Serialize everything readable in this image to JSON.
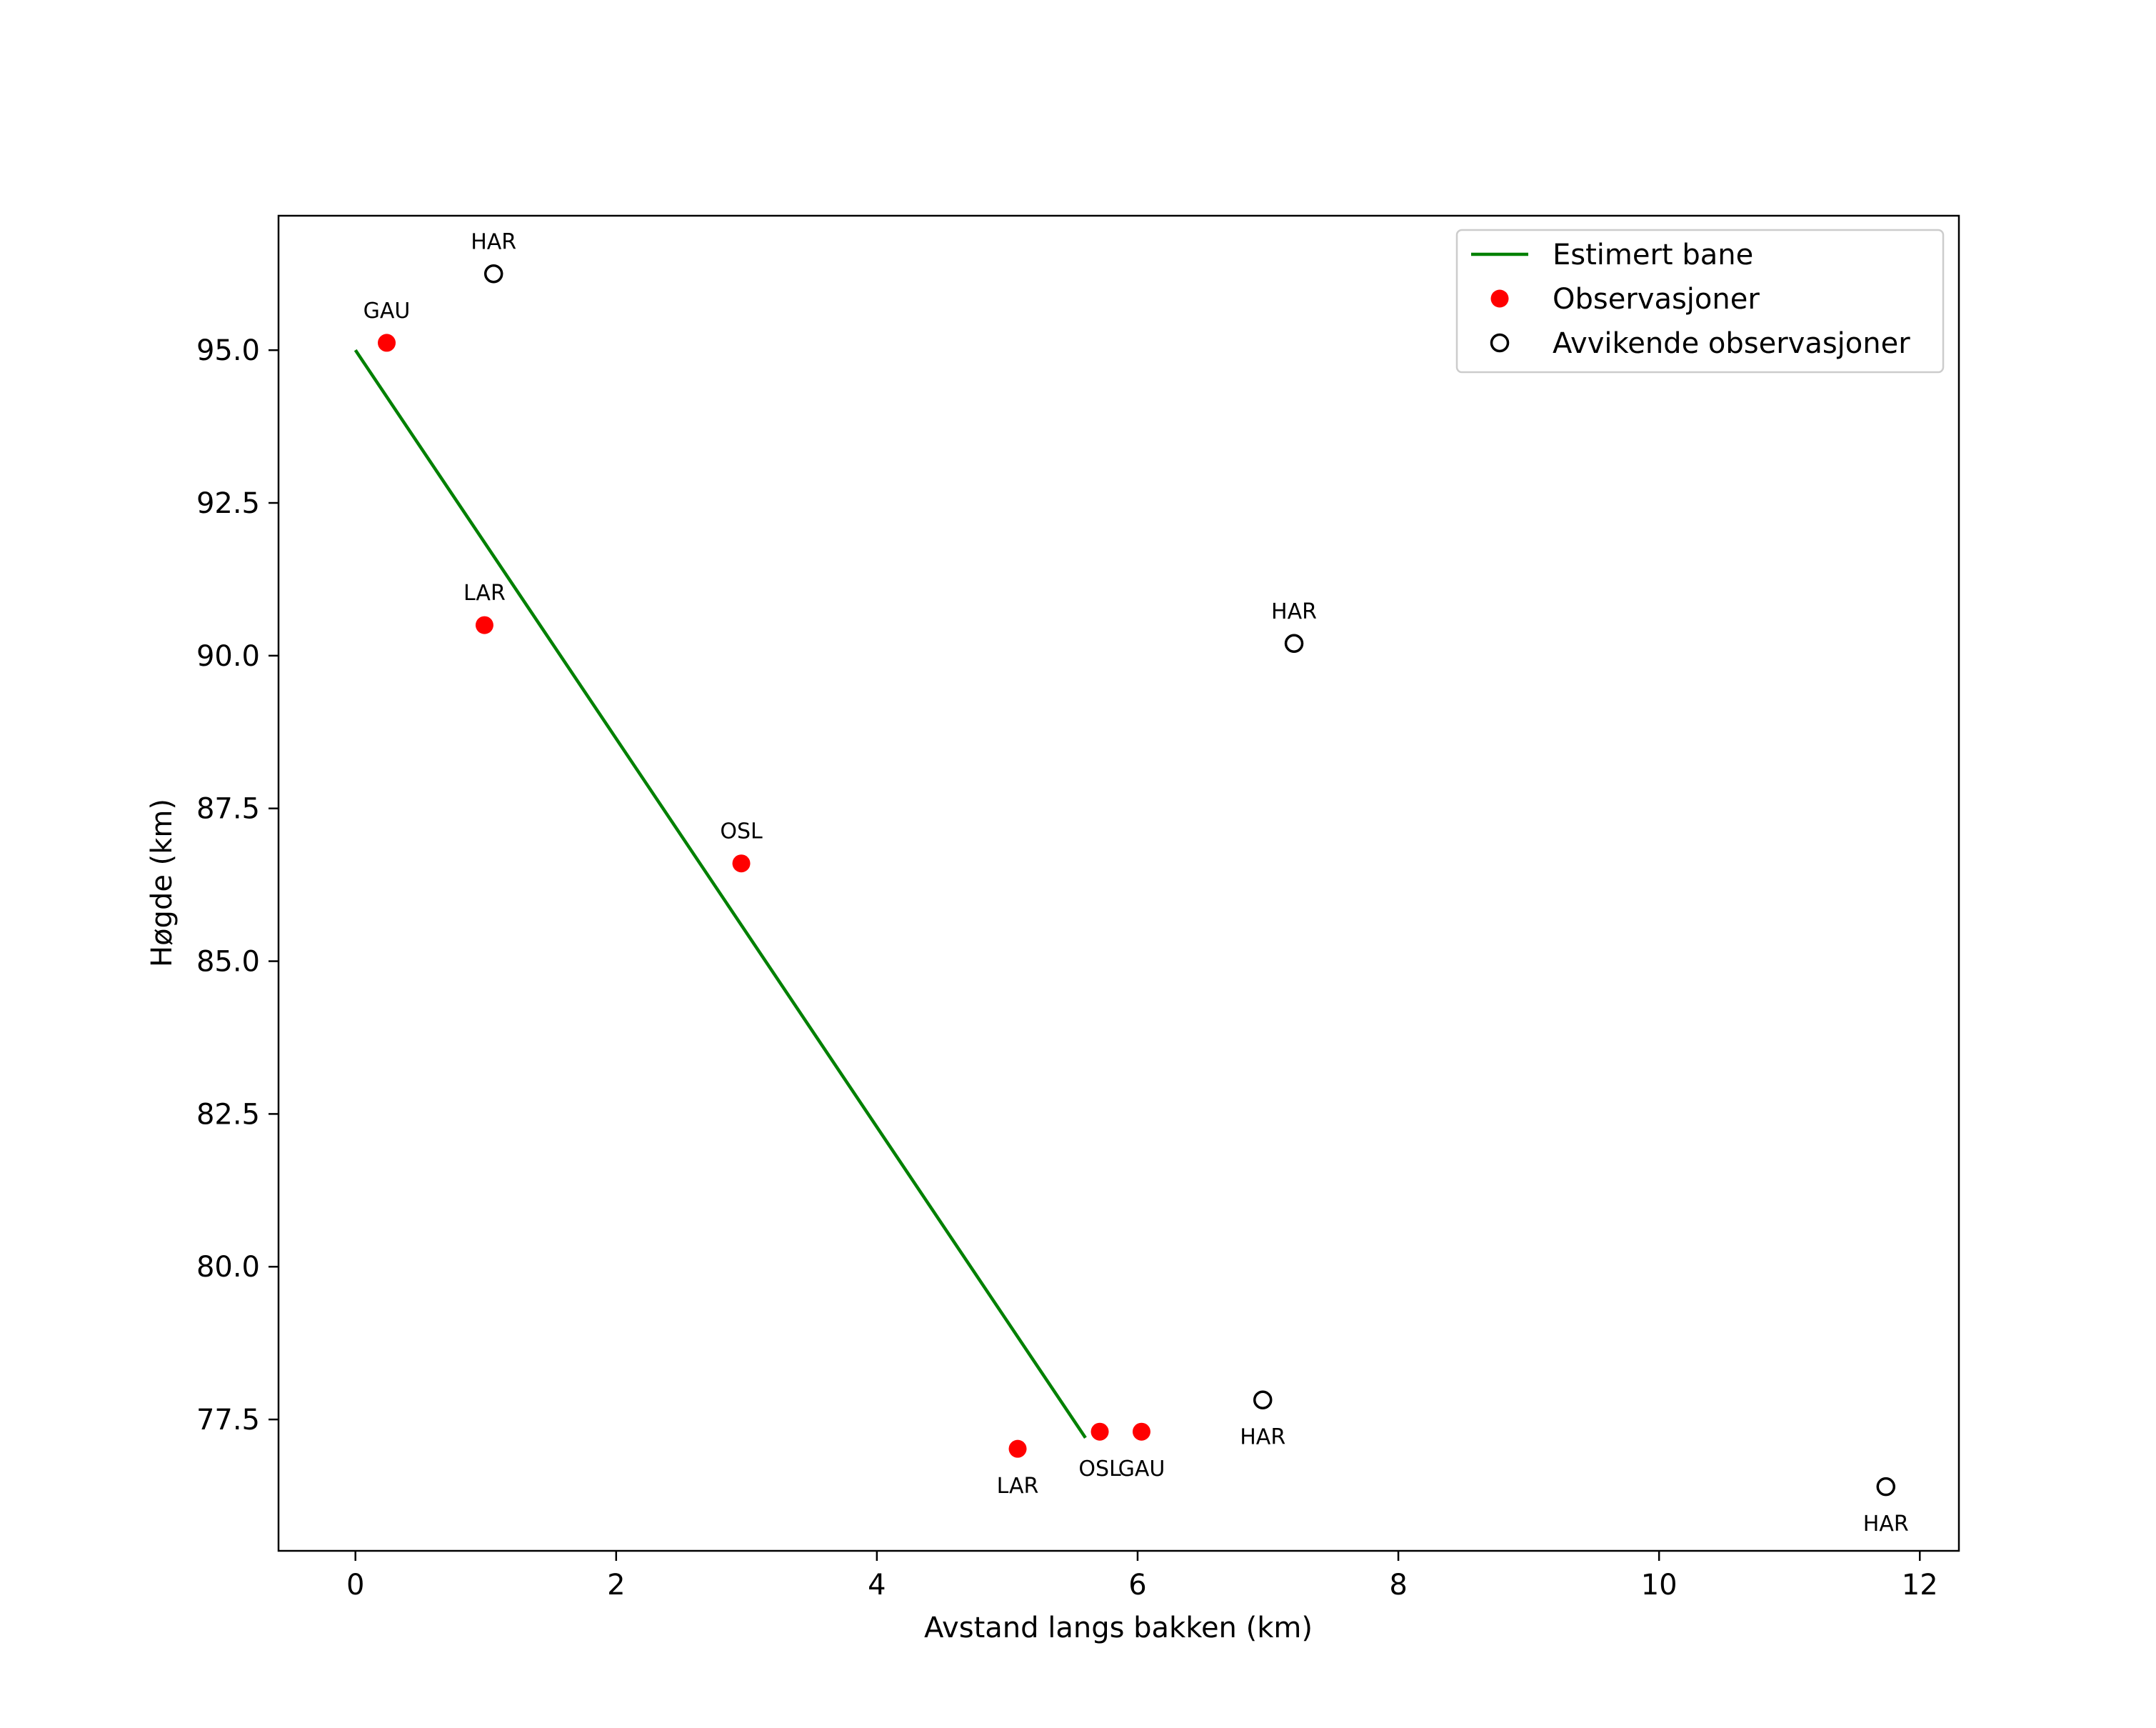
{
  "chart_data": {
    "type": "scatter",
    "title": "",
    "xlabel": "Avstand langs bakken (km)",
    "ylabel": "Høgde (km)",
    "xlim": [
      -0.59,
      12.3
    ],
    "ylim": [
      75.35,
      97.2
    ],
    "xticks": [
      0,
      2,
      4,
      6,
      8,
      10,
      12
    ],
    "xtick_labels": [
      "0",
      "2",
      "4",
      "6",
      "8",
      "10",
      "12"
    ],
    "yticks": [
      77.5,
      80.0,
      82.5,
      85.0,
      87.5,
      90.0,
      92.5,
      95.0
    ],
    "ytick_labels": [
      "77.5",
      "80.0",
      "82.5",
      "85.0",
      "87.5",
      "90.0",
      "92.5",
      "95.0"
    ],
    "grid": false,
    "legend_position": "top-right",
    "legend": [
      {
        "label": "Estimert bane",
        "kind": "line",
        "color": "#008000"
      },
      {
        "label": "Observasjoner",
        "kind": "filled-marker",
        "color": "#ff0000"
      },
      {
        "label": "Avvikende observasjoner",
        "kind": "open-marker",
        "color": "#000000"
      }
    ],
    "series": [
      {
        "name": "Estimert bane",
        "kind": "line",
        "color": "#008000",
        "points": [
          {
            "x": 0.0,
            "y": 95.0
          },
          {
            "x": 5.6,
            "y": 77.2
          }
        ]
      },
      {
        "name": "Observasjoner",
        "kind": "scatter-filled",
        "color": "#ff0000",
        "points": [
          {
            "x": 0.24,
            "y": 95.12,
            "label": "GAU",
            "label_pos": "above"
          },
          {
            "x": 0.99,
            "y": 90.5,
            "label": "LAR",
            "label_pos": "above"
          },
          {
            "x": 2.96,
            "y": 86.6,
            "label": "OSL",
            "label_pos": "above"
          },
          {
            "x": 5.08,
            "y": 77.02,
            "label": "LAR",
            "label_pos": "below"
          },
          {
            "x": 5.71,
            "y": 77.3,
            "label": "OSL",
            "label_pos": "below"
          },
          {
            "x": 6.03,
            "y": 77.3,
            "label": "GAU",
            "label_pos": "below"
          }
        ]
      },
      {
        "name": "Avvikende observasjoner",
        "kind": "scatter-open",
        "color": "#000000",
        "points": [
          {
            "x": 1.06,
            "y": 96.25,
            "label": "HAR",
            "label_pos": "above"
          },
          {
            "x": 7.2,
            "y": 90.2,
            "label": "HAR",
            "label_pos": "above"
          },
          {
            "x": 6.96,
            "y": 77.82,
            "label": "HAR",
            "label_pos": "below"
          },
          {
            "x": 11.74,
            "y": 76.4,
            "label": "HAR",
            "label_pos": "below"
          }
        ]
      }
    ]
  }
}
